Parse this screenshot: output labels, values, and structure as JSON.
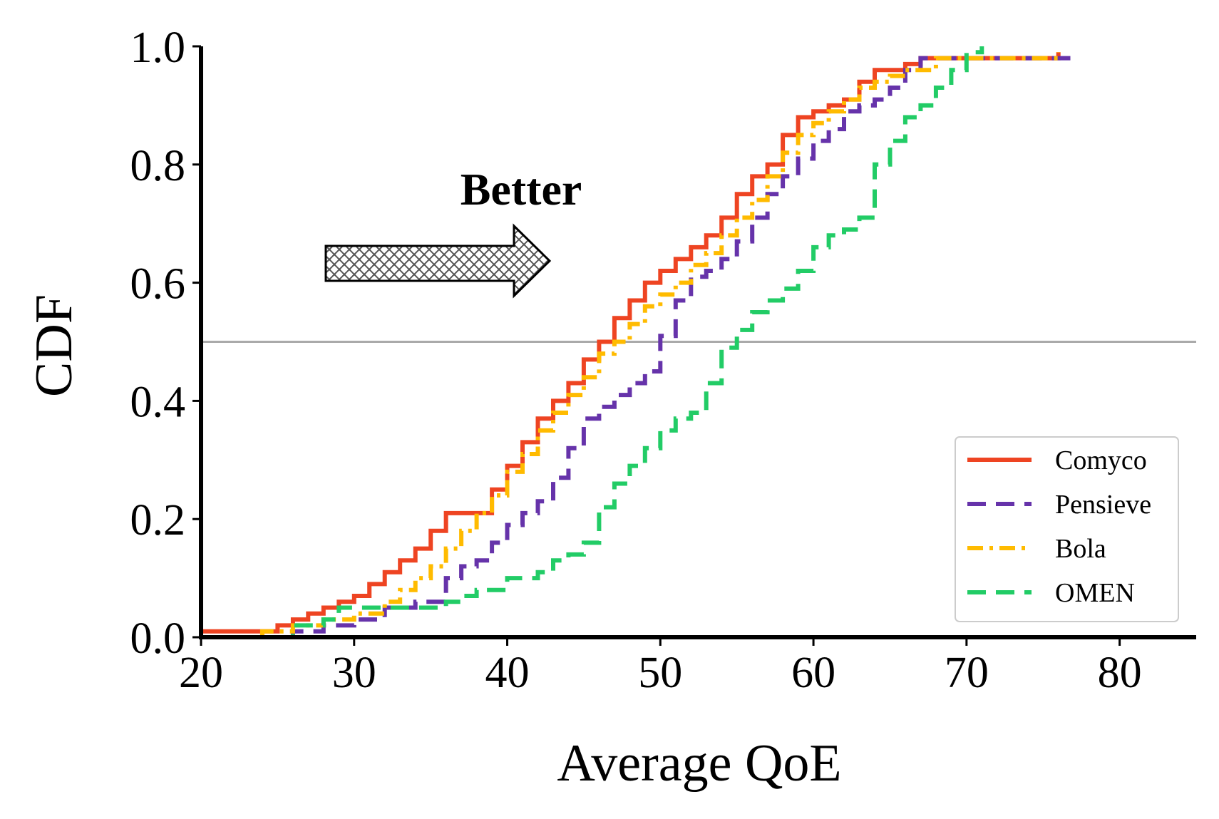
{
  "chart_data": {
    "type": "line",
    "subtype": "cdf-step",
    "xlabel": "Average QoE",
    "ylabel": "CDF",
    "xlim": [
      20,
      85
    ],
    "ylim": [
      0,
      1.0
    ],
    "xticks": [
      "20",
      "30",
      "40",
      "50",
      "60",
      "70",
      "80"
    ],
    "yticks": [
      "0.0",
      "0.2",
      "0.4",
      "0.6",
      "0.8",
      "1.0"
    ],
    "grid": false,
    "reference_line": {
      "y": 0.5,
      "color": "#aaaaaa"
    },
    "annotation": {
      "text": "Better",
      "arrow_direction": "right",
      "arrow_fill": "crosshatch"
    },
    "legend": {
      "position": "lower-right",
      "entries": [
        "Comyco",
        "Pensieve",
        "Bola",
        "OMEN"
      ]
    },
    "series": [
      {
        "name": "Comyco",
        "color": "#ee4422",
        "dash": "solid",
        "points": [
          [
            20,
            0.01
          ],
          [
            23,
            0.01
          ],
          [
            25,
            0.02
          ],
          [
            26,
            0.03
          ],
          [
            27,
            0.04
          ],
          [
            28,
            0.05
          ],
          [
            29,
            0.06
          ],
          [
            30,
            0.07
          ],
          [
            31,
            0.09
          ],
          [
            32,
            0.11
          ],
          [
            33,
            0.13
          ],
          [
            34,
            0.15
          ],
          [
            35,
            0.18
          ],
          [
            36,
            0.21
          ],
          [
            37,
            0.21
          ],
          [
            38,
            0.21
          ],
          [
            39,
            0.25
          ],
          [
            40,
            0.29
          ],
          [
            41,
            0.33
          ],
          [
            42,
            0.37
          ],
          [
            43,
            0.4
          ],
          [
            44,
            0.43
          ],
          [
            45,
            0.47
          ],
          [
            46,
            0.5
          ],
          [
            47,
            0.54
          ],
          [
            48,
            0.57
          ],
          [
            49,
            0.6
          ],
          [
            50,
            0.62
          ],
          [
            51,
            0.64
          ],
          [
            52,
            0.66
          ],
          [
            53,
            0.68
          ],
          [
            54,
            0.71
          ],
          [
            55,
            0.75
          ],
          [
            56,
            0.78
          ],
          [
            57,
            0.8
          ],
          [
            58,
            0.85
          ],
          [
            59,
            0.88
          ],
          [
            60,
            0.89
          ],
          [
            61,
            0.9
          ],
          [
            62,
            0.91
          ],
          [
            63,
            0.94
          ],
          [
            64,
            0.96
          ],
          [
            65,
            0.96
          ],
          [
            66,
            0.97
          ],
          [
            67,
            0.98
          ],
          [
            70,
            0.98
          ],
          [
            76,
            0.99
          ]
        ]
      },
      {
        "name": "Pensieve",
        "color": "#6633aa",
        "dash": "dashed",
        "points": [
          [
            24,
            0.0
          ],
          [
            26,
            0.01
          ],
          [
            28,
            0.02
          ],
          [
            30,
            0.03
          ],
          [
            32,
            0.05
          ],
          [
            34,
            0.06
          ],
          [
            35,
            0.06
          ],
          [
            36,
            0.1
          ],
          [
            37,
            0.12
          ],
          [
            38,
            0.13
          ],
          [
            39,
            0.16
          ],
          [
            40,
            0.19
          ],
          [
            41,
            0.21
          ],
          [
            42,
            0.23
          ],
          [
            43,
            0.27
          ],
          [
            44,
            0.32
          ],
          [
            45,
            0.37
          ],
          [
            46,
            0.39
          ],
          [
            47,
            0.41
          ],
          [
            48,
            0.43
          ],
          [
            49,
            0.45
          ],
          [
            50,
            0.51
          ],
          [
            51,
            0.57
          ],
          [
            52,
            0.61
          ],
          [
            53,
            0.62
          ],
          [
            54,
            0.64
          ],
          [
            55,
            0.67
          ],
          [
            56,
            0.71
          ],
          [
            57,
            0.75
          ],
          [
            58,
            0.78
          ],
          [
            59,
            0.81
          ],
          [
            60,
            0.84
          ],
          [
            61,
            0.86
          ],
          [
            62,
            0.89
          ],
          [
            63,
            0.9
          ],
          [
            64,
            0.91
          ],
          [
            65,
            0.93
          ],
          [
            66,
            0.96
          ],
          [
            67,
            0.98
          ],
          [
            70,
            0.98
          ],
          [
            77,
            0.99
          ]
        ]
      },
      {
        "name": "Bola",
        "color": "#ffbb00",
        "dash": "dashdot",
        "points": [
          [
            22,
            0.0
          ],
          [
            24,
            0.01
          ],
          [
            26,
            0.02
          ],
          [
            28,
            0.03
          ],
          [
            30,
            0.04
          ],
          [
            32,
            0.06
          ],
          [
            33,
            0.08
          ],
          [
            34,
            0.1
          ],
          [
            35,
            0.12
          ],
          [
            36,
            0.15
          ],
          [
            37,
            0.18
          ],
          [
            38,
            0.21
          ],
          [
            39,
            0.24
          ],
          [
            40,
            0.28
          ],
          [
            41,
            0.31
          ],
          [
            42,
            0.35
          ],
          [
            43,
            0.38
          ],
          [
            44,
            0.41
          ],
          [
            45,
            0.44
          ],
          [
            46,
            0.48
          ],
          [
            47,
            0.5
          ],
          [
            48,
            0.53
          ],
          [
            49,
            0.56
          ],
          [
            50,
            0.58
          ],
          [
            51,
            0.6
          ],
          [
            52,
            0.63
          ],
          [
            53,
            0.65
          ],
          [
            54,
            0.68
          ],
          [
            55,
            0.71
          ],
          [
            56,
            0.74
          ],
          [
            57,
            0.78
          ],
          [
            58,
            0.82
          ],
          [
            59,
            0.85
          ],
          [
            60,
            0.87
          ],
          [
            61,
            0.89
          ],
          [
            62,
            0.91
          ],
          [
            63,
            0.93
          ],
          [
            64,
            0.94
          ],
          [
            65,
            0.95
          ],
          [
            66,
            0.96
          ],
          [
            68,
            0.98
          ],
          [
            70,
            0.98
          ],
          [
            76,
            0.99
          ]
        ]
      },
      {
        "name": "OMEN",
        "color": "#22cc66",
        "dash": "dashed",
        "points": [
          [
            25,
            0.0
          ],
          [
            26,
            0.02
          ],
          [
            28,
            0.03
          ],
          [
            29,
            0.05
          ],
          [
            31,
            0.05
          ],
          [
            34,
            0.05
          ],
          [
            35,
            0.05
          ],
          [
            36,
            0.06
          ],
          [
            37,
            0.07
          ],
          [
            38,
            0.08
          ],
          [
            39,
            0.08
          ],
          [
            40,
            0.1
          ],
          [
            41,
            0.1
          ],
          [
            42,
            0.11
          ],
          [
            43,
            0.13
          ],
          [
            44,
            0.14
          ],
          [
            45,
            0.16
          ],
          [
            46,
            0.22
          ],
          [
            47,
            0.26
          ],
          [
            48,
            0.29
          ],
          [
            49,
            0.32
          ],
          [
            50,
            0.35
          ],
          [
            51,
            0.37
          ],
          [
            52,
            0.38
          ],
          [
            53,
            0.43
          ],
          [
            54,
            0.49
          ],
          [
            55,
            0.52
          ],
          [
            56,
            0.55
          ],
          [
            57,
            0.57
          ],
          [
            58,
            0.59
          ],
          [
            59,
            0.62
          ],
          [
            60,
            0.66
          ],
          [
            61,
            0.68
          ],
          [
            62,
            0.69
          ],
          [
            63,
            0.71
          ],
          [
            64,
            0.8
          ],
          [
            65,
            0.84
          ],
          [
            66,
            0.88
          ],
          [
            67,
            0.9
          ],
          [
            68,
            0.93
          ],
          [
            69,
            0.96
          ],
          [
            70,
            0.99
          ],
          [
            71,
            1.0
          ]
        ]
      }
    ]
  }
}
